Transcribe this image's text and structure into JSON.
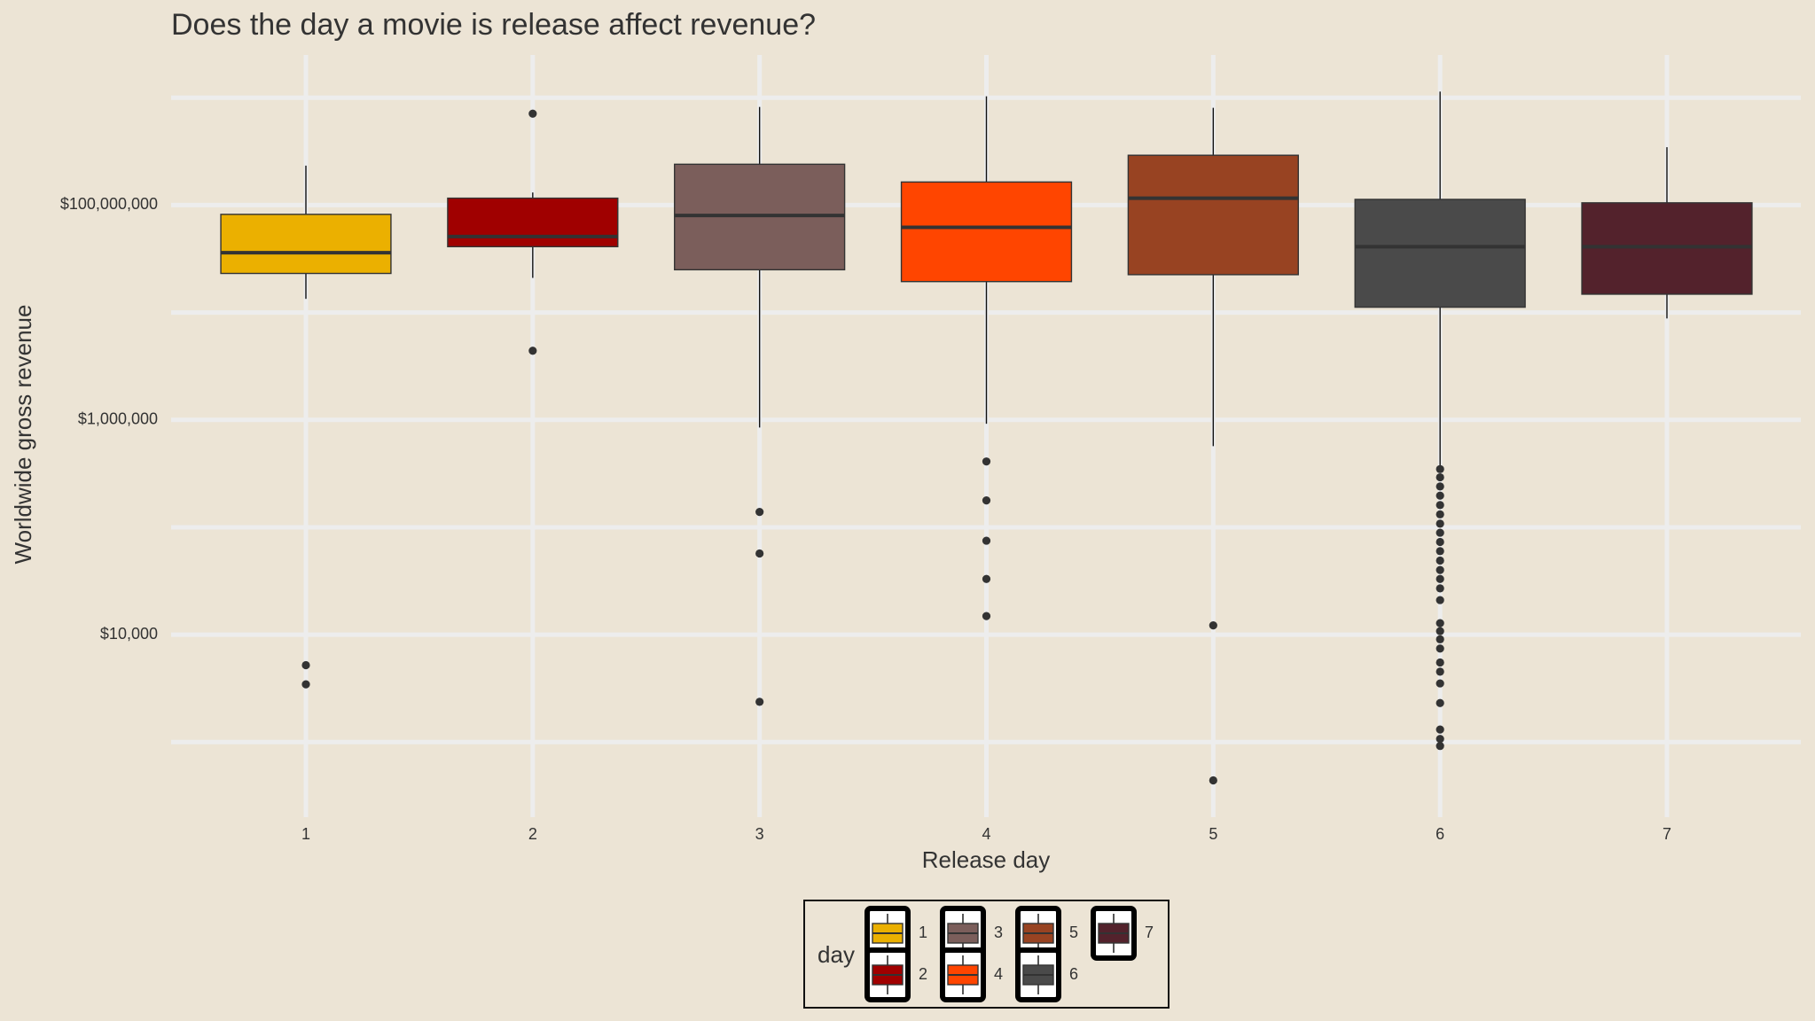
{
  "chart_data": {
    "type": "box",
    "title": "Does the day a movie is release affect revenue?",
    "x_label": "Release day",
    "y_label": "Worldwide gross revenue",
    "y_log": true,
    "grid": true,
    "ylim": [
      200,
      2500000000
    ],
    "yticks": [
      {
        "value": 10000,
        "label": "$10,000"
      },
      {
        "value": 1000000,
        "label": "$1,000,000"
      },
      {
        "value": 100000000,
        "label": "$100,000,000"
      }
    ],
    "minor_yticks": [
      1000,
      100000,
      10000000,
      1000000000
    ],
    "legend_title": "day",
    "legend_position": "bottom",
    "series": [
      {
        "name": "1",
        "color": "#EBB000",
        "whisker_low": 13400000,
        "q1": 23100000,
        "median": 36000000,
        "q3": 82000000,
        "whisker_high": 233000000,
        "outliers": [
          5200,
          3450
        ]
      },
      {
        "name": "2",
        "color": "#A00000",
        "whisker_low": 21000000,
        "q1": 41000000,
        "median": 51000000,
        "q3": 116000000,
        "whisker_high": 131000000,
        "outliers": [
          710000000,
          4400000
        ]
      },
      {
        "name": "3",
        "color": "#7B5E5B",
        "whisker_low": 850000,
        "q1": 25000000,
        "median": 80000000,
        "q3": 240000000,
        "whisker_high": 820000000,
        "outliers": [
          139000,
          57000,
          2370
        ]
      },
      {
        "name": "4",
        "color": "#FF4500",
        "whisker_low": 920000,
        "q1": 19400000,
        "median": 62000000,
        "q3": 164000000,
        "whisker_high": 1030000000,
        "outliers": [
          410000,
          178000,
          75000,
          33000,
          14900
        ]
      },
      {
        "name": "5",
        "color": "#984322",
        "whisker_low": 570000,
        "q1": 22500000,
        "median": 116000000,
        "q3": 291000000,
        "whisker_high": 805000000,
        "outliers": [
          12200,
          440
        ]
      },
      {
        "name": "6",
        "color": "#4A4A4A",
        "whisker_low": 350000,
        "q1": 11200000,
        "median": 41000000,
        "q3": 113000000,
        "whisker_high": 1140000000,
        "outliers": [
          348000,
          292000,
          240000,
          197000,
          161000,
          132000,
          108000,
          89000,
          73000,
          60000,
          49000,
          40000,
          33000,
          27000,
          21000,
          12800,
          10800,
          9060,
          7430,
          5510,
          4520,
          3520,
          2310,
          1310,
          1070,
          920
        ]
      },
      {
        "name": "7",
        "color": "#53222C",
        "whisker_low": 8800000,
        "q1": 14800000,
        "median": 41000000,
        "q3": 105000000,
        "whisker_high": 346000000,
        "outliers": []
      }
    ]
  }
}
